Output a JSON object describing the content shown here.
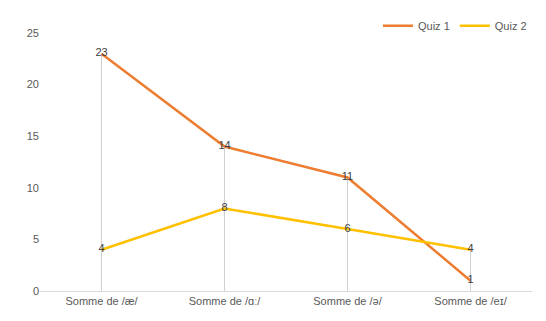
{
  "chart_data": {
    "type": "line",
    "categories": [
      "Somme de /æ/",
      "Somme de /ɑː/",
      "Somme de /ə/",
      "Somme de /eɪ/"
    ],
    "series": [
      {
        "name": "Quiz 1",
        "color": "#ED7D31",
        "values": [
          23,
          14,
          11,
          1
        ]
      },
      {
        "name": "Quiz 2",
        "color": "#FFC000",
        "values": [
          4,
          8,
          6,
          4
        ]
      }
    ],
    "ylim": [
      0,
      25
    ],
    "yticks": [
      0,
      5,
      10,
      15,
      20,
      25
    ],
    "grid": false,
    "legend": "upper right",
    "data_labels": true
  }
}
